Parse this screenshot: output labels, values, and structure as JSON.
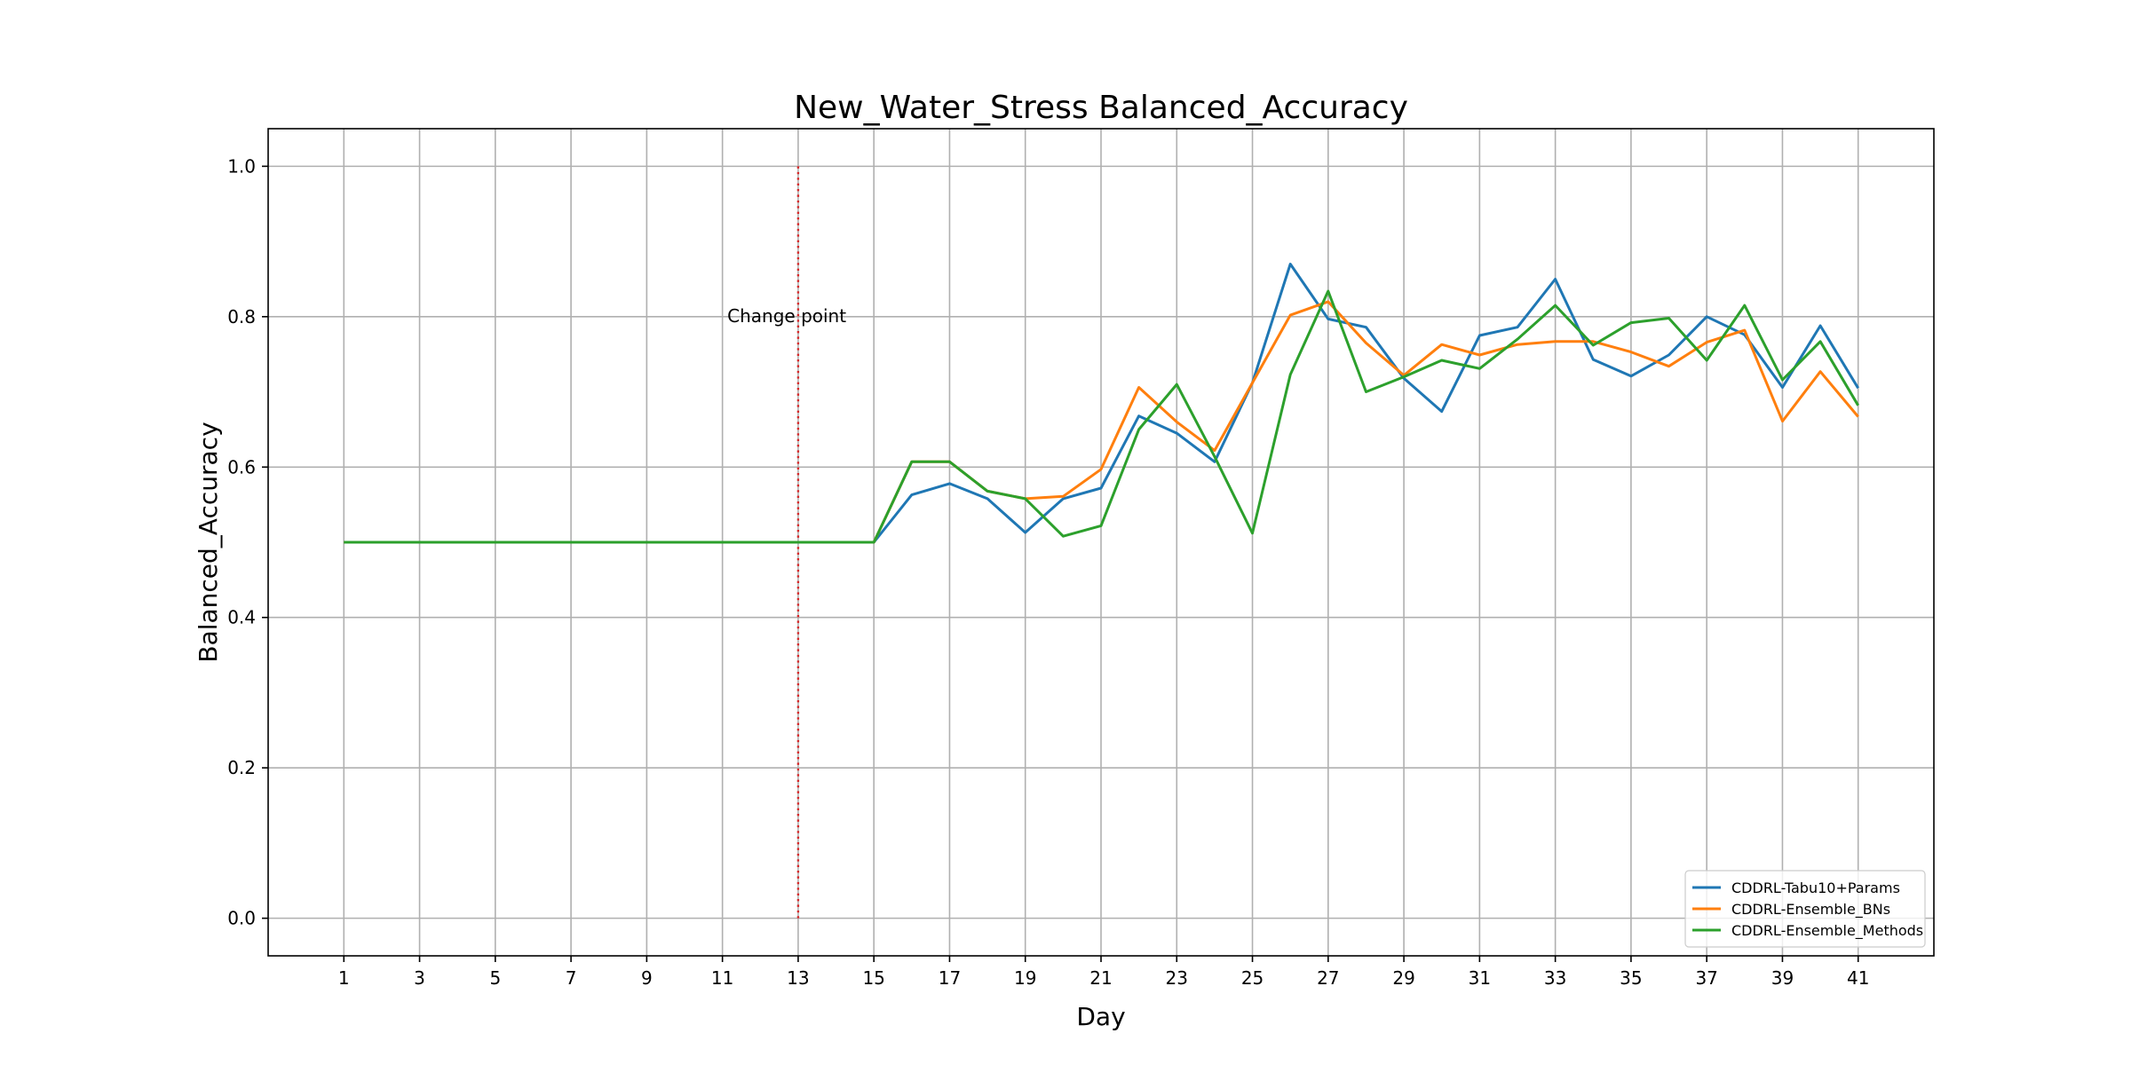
{
  "chart_data": {
    "type": "line",
    "title": "New_Water_Stress Balanced_Accuracy",
    "xlabel": "Day",
    "ylabel": "Balanced_Accuracy",
    "xlim": [
      -1,
      43
    ],
    "ylim": [
      -0.05,
      1.05
    ],
    "grid": true,
    "legend_position": "lower right",
    "x_ticks": [
      1,
      3,
      5,
      7,
      9,
      11,
      13,
      15,
      17,
      19,
      21,
      23,
      25,
      27,
      29,
      31,
      33,
      35,
      37,
      39,
      41
    ],
    "y_ticks": [
      0.0,
      0.2,
      0.4,
      0.6,
      0.8,
      1.0
    ],
    "y_tick_labels": [
      "0.0",
      "0.2",
      "0.4",
      "0.6",
      "0.8",
      "1.0"
    ],
    "x": [
      1,
      2,
      3,
      4,
      5,
      6,
      7,
      8,
      9,
      10,
      11,
      12,
      13,
      14,
      15,
      16,
      17,
      18,
      19,
      20,
      21,
      22,
      23,
      24,
      25,
      26,
      27,
      28,
      29,
      30,
      31,
      32,
      33,
      34,
      35,
      36,
      37,
      38,
      39,
      40,
      41
    ],
    "series": [
      {
        "name": "CDDRL-Tabu10+Params",
        "color": "#1f77b4",
        "values": [
          0.5,
          0.5,
          0.5,
          0.5,
          0.5,
          0.5,
          0.5,
          0.5,
          0.5,
          0.5,
          0.5,
          0.5,
          0.5,
          0.5,
          0.5,
          0.563,
          0.578,
          0.558,
          0.513,
          0.558,
          0.572,
          0.668,
          0.645,
          0.607,
          0.712,
          0.87,
          0.797,
          0.786,
          0.718,
          0.674,
          0.775,
          0.786,
          0.85,
          0.743,
          0.721,
          0.749,
          0.8,
          0.776,
          0.706,
          0.788,
          0.705
        ]
      },
      {
        "name": "CDDRL-Ensemble_BNs",
        "color": "#ff7f0e",
        "values": [
          0.5,
          0.5,
          0.5,
          0.5,
          0.5,
          0.5,
          0.5,
          0.5,
          0.5,
          0.5,
          0.5,
          0.5,
          0.5,
          0.5,
          0.5,
          0.607,
          0.607,
          0.568,
          0.558,
          0.561,
          0.597,
          0.706,
          0.66,
          0.622,
          0.712,
          0.802,
          0.82,
          0.765,
          0.722,
          0.763,
          0.749,
          0.763,
          0.767,
          0.767,
          0.753,
          0.734,
          0.766,
          0.782,
          0.661,
          0.727,
          0.667
        ]
      },
      {
        "name": "CDDRL-Ensemble_Methods",
        "color": "#2ca02c",
        "values": [
          0.5,
          0.5,
          0.5,
          0.5,
          0.5,
          0.5,
          0.5,
          0.5,
          0.5,
          0.5,
          0.5,
          0.5,
          0.5,
          0.5,
          0.5,
          0.607,
          0.607,
          0.568,
          0.558,
          0.508,
          0.522,
          0.65,
          0.71,
          0.614,
          0.512,
          0.723,
          0.834,
          0.7,
          0.72,
          0.742,
          0.731,
          0.77,
          0.815,
          0.762,
          0.792,
          0.798,
          0.742,
          0.815,
          0.716,
          0.767,
          0.682
        ]
      }
    ],
    "annotations": [
      {
        "type": "vline",
        "x": 13,
        "y_range": [
          0,
          1
        ],
        "color": "#d62728",
        "style": "dotted"
      },
      {
        "type": "text",
        "text": "Change point",
        "x": 12.7,
        "y": 0.8
      }
    ]
  }
}
